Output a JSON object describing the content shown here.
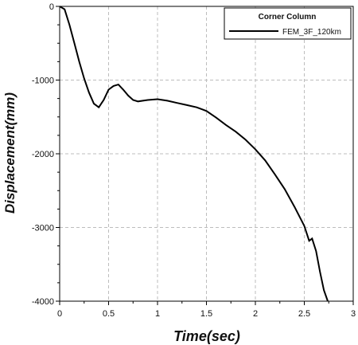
{
  "chart_data": {
    "type": "line",
    "xlabel": "Time(sec)",
    "ylabel": "Displacement(mm)",
    "xlim": [
      0,
      3
    ],
    "ylim": [
      -4000,
      0
    ],
    "xticks": [
      0,
      0.5,
      1,
      1.5,
      2,
      2.5,
      3
    ],
    "xtick_labels": [
      "0",
      "0.5",
      "1",
      "1.5",
      "2",
      "2.5",
      "3"
    ],
    "yticks": [
      0,
      -1000,
      -2000,
      -3000,
      -4000
    ],
    "ytick_labels": [
      "0",
      "-1000",
      "-2000",
      "-3000",
      "-4000"
    ],
    "grid": true,
    "legend_position": "top-right",
    "legend_title": "Corner Column",
    "series": [
      {
        "name": "FEM_3F_120km",
        "color": "#000000",
        "x": [
          0,
          0.05,
          0.1,
          0.15,
          0.2,
          0.25,
          0.3,
          0.35,
          0.4,
          0.45,
          0.5,
          0.55,
          0.6,
          0.65,
          0.7,
          0.75,
          0.8,
          0.9,
          1.0,
          1.1,
          1.2,
          1.3,
          1.4,
          1.5,
          1.6,
          1.7,
          1.8,
          1.9,
          2.0,
          2.1,
          2.2,
          2.3,
          2.4,
          2.5,
          2.55,
          2.58,
          2.62,
          2.66,
          2.7,
          2.74
        ],
        "y": [
          0,
          -40,
          -250,
          -500,
          -750,
          -980,
          -1170,
          -1320,
          -1370,
          -1270,
          -1130,
          -1080,
          -1060,
          -1130,
          -1210,
          -1270,
          -1290,
          -1270,
          -1260,
          -1280,
          -1310,
          -1340,
          -1370,
          -1420,
          -1510,
          -1610,
          -1700,
          -1810,
          -1940,
          -2090,
          -2280,
          -2480,
          -2720,
          -2980,
          -3180,
          -3150,
          -3320,
          -3600,
          -3850,
          -4000
        ]
      }
    ]
  }
}
